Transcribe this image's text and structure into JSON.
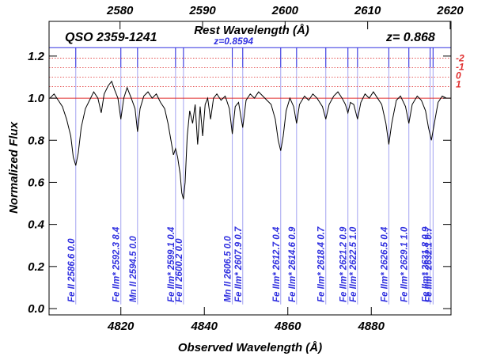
{
  "chart_data": {
    "type": "line",
    "title": "QSO 2359-1241",
    "redshift_label": "z= 0.868",
    "x2_label": "Rest Wavelength (Å)",
    "xlabel": "Observed Wavelength (Å)",
    "ylabel": "Normalized Flux",
    "xlim": [
      4802.8,
      4899.1
    ],
    "xticks": [
      4820,
      4840,
      4860,
      4880
    ],
    "x2lim": [
      2571.4,
      2620.1
    ],
    "x2ticks": [
      2580,
      2590,
      2600,
      2610,
      2620
    ],
    "ylim": [
      -0.03,
      1.365
    ],
    "yticks": [
      {
        "value": 0,
        "label": "0.0"
      },
      0.2,
      0.4,
      0.6,
      0.8,
      {
        "value": 1,
        "label": "1.0"
      },
      1.2
    ],
    "continuum": 1,
    "continuum_color": "#e03030",
    "z_line": {
      "label": "z=0.8594",
      "value": 1.24,
      "color": "#3030e0"
    },
    "markers": [
      {
        "label": "-2",
        "value": 1.19
      },
      {
        "label": "-1",
        "value": 1.145
      },
      {
        "label": "0",
        "value": 1.1
      },
      {
        "label": "1",
        "value": 1.055
      }
    ],
    "marker_color": "#e03030",
    "series": [
      {
        "color": "#000000",
        "x": [
          4803,
          4804,
          4805,
          4806,
          4807,
          4808,
          4808.6,
          4809.2,
          4809.8,
          4810.5,
          4811.5,
          4812.5,
          4813.5,
          4814.5,
          4815.3,
          4816,
          4817,
          4817.8,
          4818.5,
          4819.3,
          4820,
          4820.7,
          4821.5,
          4822.5,
          4823.4,
          4824,
          4824.6,
          4825.5,
          4826.5,
          4827.5,
          4828.5,
          4829.5,
          4830.5,
          4831.3,
          4832,
          4832.6,
          4833.1,
          4833.6,
          4834.2,
          4834.6,
          4835,
          4835.4,
          4835.9,
          4836.5,
          4837.2,
          4837.8,
          4838.4,
          4839,
          4839.6,
          4840.2,
          4840.8,
          4841.5,
          4842.2,
          4843,
          4844,
          4845,
          4846,
          4846.7,
          4847.4,
          4848.2,
          4849.2,
          4850,
          4851,
          4852,
          4853,
          4854,
          4855,
          4856,
          4857,
          4857.7,
          4858.3,
          4858.9,
          4859.6,
          4860.5,
          4861.4,
          4862.1,
          4862.8,
          4864,
          4865,
          4866,
          4867,
          4868.3,
          4869.1,
          4869.9,
          4871,
          4872,
          4873,
          4873.8,
          4874.4,
          4875,
          4875.8,
          4876.7,
          4877.5,
          4878.5,
          4879.5,
          4880.5,
          4881.5,
          4882.5,
          4883.5,
          4884.2,
          4884.9,
          4886,
          4887,
          4888.2,
          4889,
          4889.8,
          4891,
          4892,
          4893,
          4893.7,
          4894.4,
          4895.1,
          4896,
          4897,
          4898
        ],
        "values": [
          1.0,
          1.02,
          0.99,
          0.96,
          0.9,
          0.82,
          0.72,
          0.68,
          0.74,
          0.86,
          0.95,
          0.99,
          1.03,
          1.0,
          0.93,
          1.02,
          1.06,
          1.08,
          1.04,
          1.0,
          0.9,
          1.0,
          1.05,
          1.0,
          0.95,
          0.84,
          0.95,
          1.01,
          1.03,
          1.0,
          1.02,
          0.98,
          0.95,
          0.88,
          0.8,
          0.73,
          0.76,
          0.72,
          0.64,
          0.55,
          0.52,
          0.6,
          0.82,
          0.94,
          0.88,
          0.97,
          0.78,
          0.96,
          0.82,
          0.97,
          1.0,
          0.9,
          1.0,
          1.02,
          0.99,
          1.01,
          0.95,
          0.83,
          0.96,
          0.98,
          0.86,
          0.99,
          1.02,
          1.0,
          1.03,
          1.01,
          0.99,
          0.97,
          0.9,
          0.8,
          0.75,
          0.82,
          0.94,
          1.0,
          0.96,
          0.88,
          0.97,
          1.01,
          0.99,
          1.02,
          1.0,
          0.96,
          0.9,
          0.97,
          1.01,
          1.03,
          1.0,
          0.97,
          0.93,
          0.98,
          0.97,
          0.9,
          0.98,
          1.02,
          1.0,
          1.03,
          1.0,
          0.97,
          0.88,
          0.78,
          0.88,
          0.99,
          1.01,
          0.96,
          0.88,
          0.97,
          1.01,
          0.99,
          0.94,
          0.86,
          0.8,
          0.88,
          0.98,
          1.01,
          1.0
        ]
      }
    ],
    "line_color": "#3030e0",
    "lines": [
      {
        "label": "Fe II 2586.6 0.0",
        "x": 4809.2
      },
      {
        "label": "Fe IIm* 2592.3 8.4",
        "x": 4820.0
      },
      {
        "label": "Mn II 2594.5 0.0",
        "x": 4824.0
      },
      {
        "label": "Fe IIm* 2599.1 0.4",
        "x": 4833.1
      },
      {
        "label": "Fe II 2600.2 0.0",
        "x": 4835.0
      },
      {
        "label": "Mn II 2606.5 0.0",
        "x": 4846.7
      },
      {
        "label": "Fe IIm* 2607.9 0.7",
        "x": 4849.2
      },
      {
        "label": "Fe IIm* 2612.7 0.4",
        "x": 4858.3
      },
      {
        "label": "Fe IIm* 2614.6 0.9",
        "x": 4862.1
      },
      {
        "label": "Fe IIm* 2618.4 0.7",
        "x": 4869.1
      },
      {
        "label": "Fe IIm* 2621.2 0.9",
        "x": 4874.4
      },
      {
        "label": "Fe IIm* 2622.5 1.0",
        "x": 4876.7
      },
      {
        "label": "Fe IIm* 2626.5 0.4",
        "x": 4884.2
      },
      {
        "label": "Fe IIm* 2629.1 1.0",
        "x": 4889.0
      },
      {
        "label": "Fe IIm* 2631.8 0.9",
        "x": 4894.1
      },
      {
        "label": "Fe IIm* 2632.1 0.7",
        "x": 4894.8
      }
    ]
  }
}
